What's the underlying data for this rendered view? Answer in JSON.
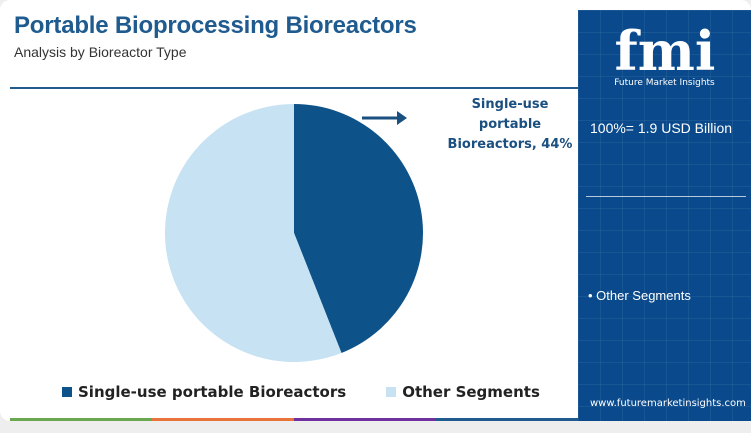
{
  "header": {
    "title": "Portable Bioprocessing Bioreactors",
    "subtitle": "Analysis by Bioreactor Type"
  },
  "chart_data": {
    "type": "pie",
    "title": "Portable Bioprocessing Bioreactors",
    "subtitle": "Analysis by Bioreactor Type",
    "slices": [
      {
        "label": "Single-use portable Bioreactors",
        "value": 44,
        "color": "#0d5289"
      },
      {
        "label": "Other Segments",
        "value": 56,
        "color": "#c6e2f3"
      }
    ],
    "annotation": [
      "Single-use",
      "portable",
      "Bioreactors, 44%"
    ],
    "legend_position": "bottom",
    "legend": [
      "Single-use portable Bioreactors",
      "Other Segments"
    ]
  },
  "side_panel": {
    "logo_text": "fmi",
    "logo_tagline": "Future Market Insights",
    "total_label": "100%= 1.9 USD Billion",
    "segment_bullet": "• Other Segments",
    "website": "www.futuremarketinsights.com"
  },
  "colors": {
    "title": "#1f5b8e",
    "panel": "#0a4a8c",
    "bar": [
      "#6aa84f",
      "#e8743b",
      "#7030a0",
      "#1f5b8e"
    ]
  }
}
